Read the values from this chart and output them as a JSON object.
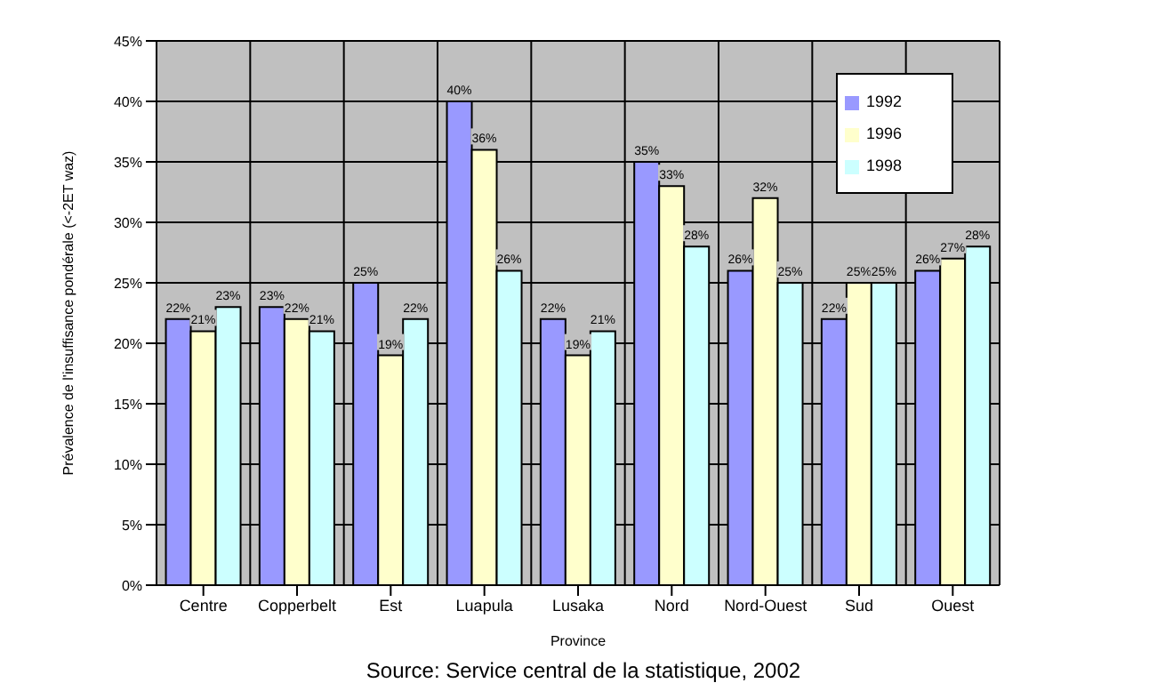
{
  "chart_data": {
    "type": "bar",
    "xlabel": "Province",
    "ylabel": "Prévalence de l'insuffisance pondérale (<-2ET waz)",
    "categories": [
      "Centre",
      "Copperbelt",
      "Est",
      "Luapula",
      "Lusaka",
      "Nord",
      "Nord-Ouest",
      "Sud",
      "Ouest"
    ],
    "series": [
      {
        "name": "1992",
        "color": "#9999ff",
        "values": [
          22,
          23,
          25,
          40,
          22,
          35,
          26,
          22,
          26
        ],
        "value_labels": [
          "22%",
          "23%",
          "25%",
          "40%",
          "22%",
          "35%",
          "26%",
          "22%",
          "26%"
        ]
      },
      {
        "name": "1996",
        "color": "#ffffcc",
        "values": [
          21,
          22,
          19,
          36,
          19,
          33,
          32,
          25,
          27
        ],
        "value_labels": [
          "21%",
          "22%",
          "19%",
          "36%",
          "19%",
          "33%",
          "32%",
          "25%",
          "27%"
        ]
      },
      {
        "name": "1998",
        "color": "#ccffff",
        "values": [
          23,
          21,
          22,
          26,
          21,
          28,
          25,
          25,
          28
        ],
        "value_labels": [
          "23%",
          "21%",
          "22%",
          "26%",
          "21%",
          "28%",
          "25%",
          "25%",
          "28%"
        ]
      }
    ],
    "ylim": [
      0,
      45
    ],
    "yticks": [
      {
        "value": 0,
        "label": "0%"
      },
      {
        "value": 5,
        "label": "5%"
      },
      {
        "value": 10,
        "label": "10%"
      },
      {
        "value": 15,
        "label": "15%"
      },
      {
        "value": 20,
        "label": "20%"
      },
      {
        "value": 25,
        "label": "25%"
      },
      {
        "value": 30,
        "label": "30%"
      },
      {
        "value": 35,
        "label": "35%"
      },
      {
        "value": 40,
        "label": "40%"
      },
      {
        "value": 45,
        "label": "45%"
      }
    ],
    "grid": true,
    "legend": "top right",
    "annotations": [
      "Source: Service central de la statistique, 2002"
    ]
  }
}
